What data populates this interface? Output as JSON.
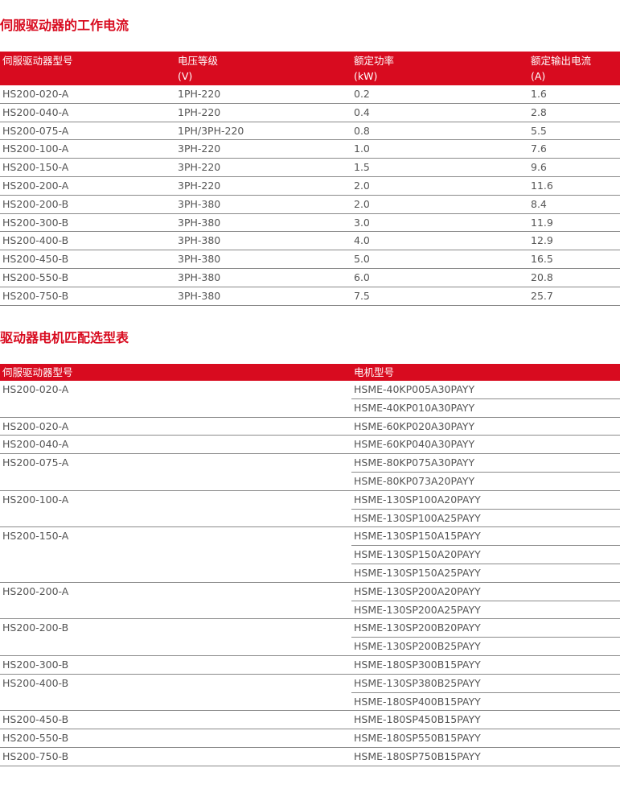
{
  "section1": {
    "title": "伺服驱动器的工作电流",
    "headers": [
      {
        "label": "伺服驱动器型号",
        "unit": ""
      },
      {
        "label": "电压等级",
        "unit": "(V)"
      },
      {
        "label": "额定功率",
        "unit": "(kW)"
      },
      {
        "label": "额定输出电流",
        "unit": "(A)"
      }
    ],
    "rows": [
      [
        "HS200-020-A",
        "1PH-220",
        "0.2",
        "1.6"
      ],
      [
        "HS200-040-A",
        "1PH-220",
        "0.4",
        "2.8"
      ],
      [
        "HS200-075-A",
        "1PH/3PH-220",
        "0.8",
        "5.5"
      ],
      [
        "HS200-100-A",
        "3PH-220",
        "1.0",
        "7.6"
      ],
      [
        "HS200-150-A",
        "3PH-220",
        "1.5",
        "9.6"
      ],
      [
        "HS200-200-A",
        "3PH-220",
        "2.0",
        "11.6"
      ],
      [
        "HS200-200-B",
        "3PH-380",
        "2.0",
        "8.4"
      ],
      [
        "HS200-300-B",
        "3PH-380",
        "3.0",
        "11.9"
      ],
      [
        "HS200-400-B",
        "3PH-380",
        "4.0",
        "12.9"
      ],
      [
        "HS200-450-B",
        "3PH-380",
        "5.0",
        "16.5"
      ],
      [
        "HS200-550-B",
        "3PH-380",
        "6.0",
        "20.8"
      ],
      [
        "HS200-750-B",
        "3PH-380",
        "7.5",
        "25.7"
      ]
    ]
  },
  "section2": {
    "title": "驱动器电机匹配选型表",
    "headers": [
      "伺服驱动器型号",
      "电机型号"
    ],
    "groups": [
      {
        "driver": "HS200-020-A",
        "motors": [
          "HSME-40KP005A30PAYY",
          "HSME-40KP010A30PAYY"
        ]
      },
      {
        "driver": "HS200-020-A",
        "motors": [
          "HSME-60KP020A30PAYY"
        ]
      },
      {
        "driver": "HS200-040-A",
        "motors": [
          "HSME-60KP040A30PAYY"
        ]
      },
      {
        "driver": "HS200-075-A",
        "motors": [
          "HSME-80KP075A30PAYY",
          "HSME-80KP073A20PAYY"
        ]
      },
      {
        "driver": "HS200-100-A",
        "motors": [
          "HSME-130SP100A20PAYY",
          "HSME-130SP100A25PAYY"
        ]
      },
      {
        "driver": "HS200-150-A",
        "motors": [
          "HSME-130SP150A15PAYY",
          "HSME-130SP150A20PAYY",
          "HSME-130SP150A25PAYY"
        ]
      },
      {
        "driver": "HS200-200-A",
        "motors": [
          "HSME-130SP200A20PAYY",
          "HSME-130SP200A25PAYY"
        ]
      },
      {
        "driver": "HS200-200-B",
        "motors": [
          "HSME-130SP200B20PAYY",
          "HSME-130SP200B25PAYY"
        ]
      },
      {
        "driver": "HS200-300-B",
        "motors": [
          "HSME-180SP300B15PAYY"
        ]
      },
      {
        "driver": "HS200-400-B",
        "motors": [
          "HSME-130SP380B25PAYY",
          "HSME-180SP400B15PAYY"
        ]
      },
      {
        "driver": "HS200-450-B",
        "motors": [
          "HSME-180SP450B15PAYY"
        ]
      },
      {
        "driver": "HS200-550-B",
        "motors": [
          "HSME-180SP550B15PAYY"
        ]
      },
      {
        "driver": "HS200-750-B",
        "motors": [
          "HSME-180SP750B15PAYY"
        ]
      }
    ]
  }
}
